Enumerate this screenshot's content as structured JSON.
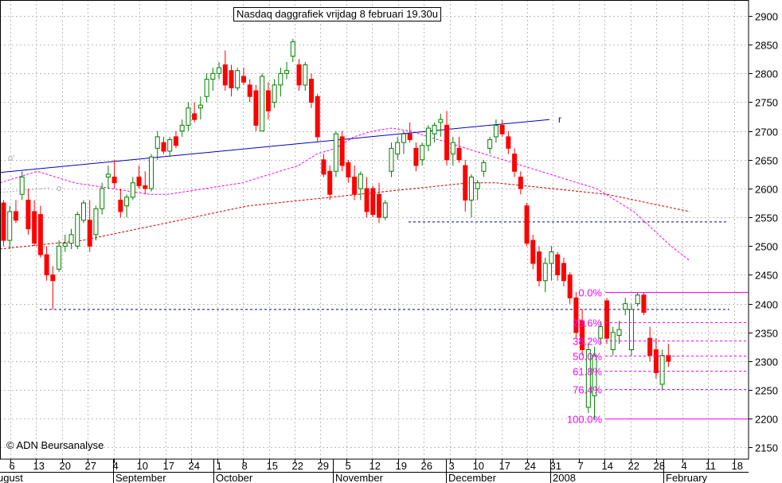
{
  "title": "Nasdaq daggrafiek vrijdag 8 februari 19.30u",
  "credit": "© ADN Beursanalyse",
  "chart_data": {
    "type": "candlestick",
    "y_range": [
      2140,
      2920
    ],
    "y_ticks": [
      2150,
      2200,
      2250,
      2300,
      2350,
      2400,
      2450,
      2500,
      2550,
      2600,
      2650,
      2700,
      2750,
      2800,
      2850,
      2900
    ],
    "x_day_labels": [
      "6",
      "13",
      "20",
      "27",
      "4",
      "10",
      "17",
      "24",
      "1",
      "8",
      "15",
      "22",
      "29",
      "5",
      "12",
      "19",
      "26",
      "3",
      "10",
      "17",
      "24",
      "31",
      "7",
      "14",
      "22",
      "28",
      "4",
      "11",
      "18"
    ],
    "x_month_labels": [
      "ugust",
      "September",
      "October",
      "November",
      "December",
      "2008",
      "February"
    ],
    "grid": true,
    "candles": [
      {
        "o": 2575,
        "h": 2580,
        "l": 2500,
        "c": 2510
      },
      {
        "o": 2510,
        "h": 2570,
        "l": 2495,
        "c": 2560
      },
      {
        "o": 2560,
        "h": 2580,
        "l": 2540,
        "c": 2545
      },
      {
        "o": 2590,
        "h": 2630,
        "l": 2580,
        "c": 2620
      },
      {
        "o": 2580,
        "h": 2600,
        "l": 2520,
        "c": 2530
      },
      {
        "o": 2560,
        "h": 2580,
        "l": 2500,
        "c": 2505
      },
      {
        "o": 2555,
        "h": 2570,
        "l": 2480,
        "c": 2485
      },
      {
        "o": 2485,
        "h": 2500,
        "l": 2440,
        "c": 2450
      },
      {
        "o": 2450,
        "h": 2465,
        "l": 2390,
        "c": 2440
      },
      {
        "o": 2460,
        "h": 2510,
        "l": 2455,
        "c": 2500
      },
      {
        "o": 2500,
        "h": 2520,
        "l": 2490,
        "c": 2505
      },
      {
        "o": 2505,
        "h": 2530,
        "l": 2495,
        "c": 2520
      },
      {
        "o": 2500,
        "h": 2560,
        "l": 2495,
        "c": 2555
      },
      {
        "o": 2545,
        "h": 2580,
        "l": 2540,
        "c": 2575
      },
      {
        "o": 2545,
        "h": 2580,
        "l": 2490,
        "c": 2500
      },
      {
        "o": 2520,
        "h": 2570,
        "l": 2510,
        "c": 2565
      },
      {
        "o": 2565,
        "h": 2610,
        "l": 2555,
        "c": 2600
      },
      {
        "o": 2620,
        "h": 2640,
        "l": 2600,
        "c": 2625
      },
      {
        "o": 2620,
        "h": 2650,
        "l": 2600,
        "c": 2610
      },
      {
        "o": 2580,
        "h": 2600,
        "l": 2550,
        "c": 2560
      },
      {
        "o": 2570,
        "h": 2590,
        "l": 2550,
        "c": 2585
      },
      {
        "o": 2585,
        "h": 2620,
        "l": 2580,
        "c": 2610
      },
      {
        "o": 2620,
        "h": 2640,
        "l": 2600,
        "c": 2605
      },
      {
        "o": 2605,
        "h": 2630,
        "l": 2590,
        "c": 2600
      },
      {
        "o": 2600,
        "h": 2660,
        "l": 2595,
        "c": 2655
      },
      {
        "o": 2670,
        "h": 2700,
        "l": 2650,
        "c": 2690
      },
      {
        "o": 2680,
        "h": 2690,
        "l": 2660,
        "c": 2665
      },
      {
        "o": 2665,
        "h": 2690,
        "l": 2655,
        "c": 2685
      },
      {
        "o": 2690,
        "h": 2700,
        "l": 2670,
        "c": 2675
      },
      {
        "o": 2700,
        "h": 2720,
        "l": 2690,
        "c": 2710
      },
      {
        "o": 2710,
        "h": 2750,
        "l": 2700,
        "c": 2740
      },
      {
        "o": 2730,
        "h": 2750,
        "l": 2715,
        "c": 2720
      },
      {
        "o": 2740,
        "h": 2760,
        "l": 2720,
        "c": 2745
      },
      {
        "o": 2760,
        "h": 2800,
        "l": 2750,
        "c": 2790
      },
      {
        "o": 2790,
        "h": 2810,
        "l": 2770,
        "c": 2800
      },
      {
        "o": 2800,
        "h": 2820,
        "l": 2790,
        "c": 2810
      },
      {
        "o": 2815,
        "h": 2840,
        "l": 2770,
        "c": 2780
      },
      {
        "o": 2805,
        "h": 2815,
        "l": 2760,
        "c": 2775
      },
      {
        "o": 2775,
        "h": 2810,
        "l": 2770,
        "c": 2805
      },
      {
        "o": 2795,
        "h": 2810,
        "l": 2780,
        "c": 2785
      },
      {
        "o": 2780,
        "h": 2790,
        "l": 2750,
        "c": 2760
      },
      {
        "o": 2770,
        "h": 2780,
        "l": 2700,
        "c": 2710
      },
      {
        "o": 2700,
        "h": 2800,
        "l": 2700,
        "c": 2795
      },
      {
        "o": 2770,
        "h": 2785,
        "l": 2720,
        "c": 2735
      },
      {
        "o": 2750,
        "h": 2790,
        "l": 2740,
        "c": 2780
      },
      {
        "o": 2780,
        "h": 2810,
        "l": 2760,
        "c": 2800
      },
      {
        "o": 2800,
        "h": 2820,
        "l": 2790,
        "c": 2805
      },
      {
        "o": 2830,
        "h": 2860,
        "l": 2820,
        "c": 2855
      },
      {
        "o": 2815,
        "h": 2825,
        "l": 2770,
        "c": 2780
      },
      {
        "o": 2780,
        "h": 2820,
        "l": 2770,
        "c": 2815
      },
      {
        "o": 2790,
        "h": 2800,
        "l": 2740,
        "c": 2750
      },
      {
        "o": 2760,
        "h": 2765,
        "l": 2680,
        "c": 2690
      },
      {
        "o": 2650,
        "h": 2660,
        "l": 2620,
        "c": 2625
      },
      {
        "o": 2630,
        "h": 2640,
        "l": 2580,
        "c": 2590
      },
      {
        "o": 2630,
        "h": 2700,
        "l": 2620,
        "c": 2695
      },
      {
        "o": 2690,
        "h": 2700,
        "l": 2630,
        "c": 2640
      },
      {
        "o": 2645,
        "h": 2650,
        "l": 2610,
        "c": 2620
      },
      {
        "o": 2620,
        "h": 2640,
        "l": 2580,
        "c": 2590
      },
      {
        "o": 2600,
        "h": 2630,
        "l": 2580,
        "c": 2625
      },
      {
        "o": 2600,
        "h": 2620,
        "l": 2550,
        "c": 2560
      },
      {
        "o": 2600,
        "h": 2605,
        "l": 2550,
        "c": 2555
      },
      {
        "o": 2590,
        "h": 2610,
        "l": 2540,
        "c": 2550
      },
      {
        "o": 2550,
        "h": 2580,
        "l": 2545,
        "c": 2575
      },
      {
        "o": 2630,
        "h": 2680,
        "l": 2620,
        "c": 2670
      },
      {
        "o": 2660,
        "h": 2690,
        "l": 2650,
        "c": 2680
      },
      {
        "o": 2680,
        "h": 2700,
        "l": 2660,
        "c": 2695
      },
      {
        "o": 2695,
        "h": 2715,
        "l": 2680,
        "c": 2685
      },
      {
        "o": 2670,
        "h": 2680,
        "l": 2630,
        "c": 2640
      },
      {
        "o": 2650,
        "h": 2680,
        "l": 2640,
        "c": 2675
      },
      {
        "o": 2675,
        "h": 2710,
        "l": 2665,
        "c": 2705
      },
      {
        "o": 2695,
        "h": 2715,
        "l": 2680,
        "c": 2710
      },
      {
        "o": 2715,
        "h": 2730,
        "l": 2690,
        "c": 2720
      },
      {
        "o": 2710,
        "h": 2735,
        "l": 2640,
        "c": 2650
      },
      {
        "o": 2660,
        "h": 2690,
        "l": 2640,
        "c": 2680
      },
      {
        "o": 2670,
        "h": 2690,
        "l": 2645,
        "c": 2650
      },
      {
        "o": 2640,
        "h": 2650,
        "l": 2560,
        "c": 2580
      },
      {
        "o": 2580,
        "h": 2625,
        "l": 2550,
        "c": 2620
      },
      {
        "o": 2600,
        "h": 2615,
        "l": 2580,
        "c": 2610
      },
      {
        "o": 2630,
        "h": 2650,
        "l": 2620,
        "c": 2645
      },
      {
        "o": 2670,
        "h": 2690,
        "l": 2660,
        "c": 2685
      },
      {
        "o": 2690,
        "h": 2720,
        "l": 2680,
        "c": 2710
      },
      {
        "o": 2710,
        "h": 2720,
        "l": 2690,
        "c": 2695
      },
      {
        "o": 2690,
        "h": 2700,
        "l": 2660,
        "c": 2670
      },
      {
        "o": 2660,
        "h": 2670,
        "l": 2620,
        "c": 2630
      },
      {
        "o": 2620,
        "h": 2630,
        "l": 2590,
        "c": 2600
      },
      {
        "o": 2570,
        "h": 2575,
        "l": 2500,
        "c": 2505
      },
      {
        "o": 2510,
        "h": 2520,
        "l": 2460,
        "c": 2470
      },
      {
        "o": 2490,
        "h": 2500,
        "l": 2430,
        "c": 2440
      },
      {
        "o": 2440,
        "h": 2480,
        "l": 2420,
        "c": 2470
      },
      {
        "o": 2470,
        "h": 2500,
        "l": 2440,
        "c": 2490
      },
      {
        "o": 2485,
        "h": 2490,
        "l": 2440,
        "c": 2450
      },
      {
        "o": 2470,
        "h": 2480,
        "l": 2430,
        "c": 2440
      },
      {
        "o": 2450,
        "h": 2455,
        "l": 2400,
        "c": 2410
      },
      {
        "o": 2410,
        "h": 2420,
        "l": 2340,
        "c": 2350
      },
      {
        "o": 2370,
        "h": 2390,
        "l": 2310,
        "c": 2320
      },
      {
        "o": 2220,
        "h": 2330,
        "l": 2210,
        "c": 2320
      },
      {
        "o": 2240,
        "h": 2325,
        "l": 2200,
        "c": 2310
      },
      {
        "o": 2340,
        "h": 2370,
        "l": 2330,
        "c": 2360
      },
      {
        "o": 2405,
        "h": 2410,
        "l": 2330,
        "c": 2340
      },
      {
        "o": 2320,
        "h": 2360,
        "l": 2310,
        "c": 2350
      },
      {
        "o": 2345,
        "h": 2370,
        "l": 2330,
        "c": 2355
      },
      {
        "o": 2390,
        "h": 2410,
        "l": 2380,
        "c": 2400
      },
      {
        "o": 2320,
        "h": 2400,
        "l": 2310,
        "c": 2390
      },
      {
        "o": 2400,
        "h": 2420,
        "l": 2395,
        "c": 2415
      },
      {
        "o": 2415,
        "h": 2420,
        "l": 2380,
        "c": 2385
      },
      {
        "o": 2340,
        "h": 2360,
        "l": 2300,
        "c": 2310
      },
      {
        "o": 2320,
        "h": 2340,
        "l": 2270,
        "c": 2280
      },
      {
        "o": 2260,
        "h": 2320,
        "l": 2250,
        "c": 2310
      },
      {
        "o": 2310,
        "h": 2330,
        "l": 2290,
        "c": 2300
      }
    ],
    "moving_average_short": [
      2610,
      2620,
      2630,
      2620,
      2610,
      2605,
      2600,
      2595,
      2590,
      2590,
      2595,
      2600,
      2605,
      2610,
      2620,
      2630,
      2640,
      2660,
      2670,
      2690,
      2700,
      2705,
      2700,
      2690,
      2680,
      2670,
      2660,
      2650,
      2640,
      2630,
      2620,
      2610,
      2600,
      2580,
      2560,
      2530,
      2500,
      2475
    ],
    "moving_average_long": [
      2495,
      2500,
      2505,
      2510,
      2520,
      2530,
      2540,
      2550,
      2560,
      2570,
      2575,
      2580,
      2585,
      2590,
      2595,
      2600,
      2605,
      2610,
      2610,
      2605,
      2600,
      2595,
      2590,
      2580,
      2570,
      2560
    ],
    "trendline": {
      "label": "r",
      "y_start": 2628,
      "y_end": 2720
    },
    "horizontal_levels": [
      2542,
      2390
    ],
    "fibonacci": {
      "high": 2420,
      "low": 2200,
      "labels": [
        "0.0%",
        "23.6%",
        "38.2%",
        "50.0%",
        "61.8%",
        "76.4%",
        "100.0%"
      ],
      "ratios": [
        0,
        0.236,
        0.382,
        0.5,
        0.618,
        0.764,
        1.0
      ]
    },
    "side_labels": [
      "o'",
      "o"
    ],
    "colors": {
      "up": "#008000",
      "down": "#ff0000",
      "trendline": "#0000c0",
      "ma_short": "#ff00ff",
      "ma_long": "#cc0000",
      "fib": "#ff00ff",
      "grid": "#bbbbbb"
    }
  }
}
